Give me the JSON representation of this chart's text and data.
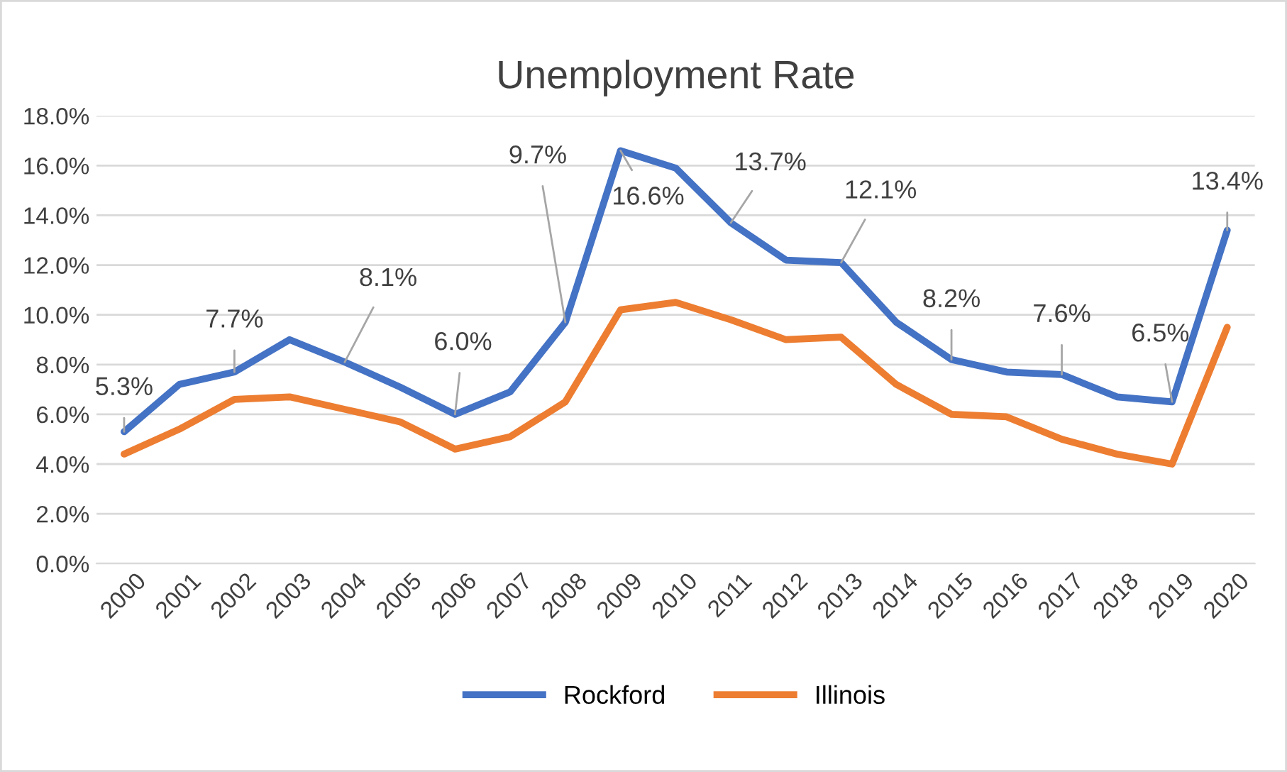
{
  "chart_data": {
    "type": "line",
    "title": "Unemployment Rate",
    "categories": [
      "2000",
      "2001",
      "2002",
      "2003",
      "2004",
      "2005",
      "2006",
      "2007",
      "2008",
      "2009",
      "2010",
      "2011",
      "2012",
      "2013",
      "2014",
      "2015",
      "2016",
      "2017",
      "2018",
      "2019",
      "2020"
    ],
    "series": [
      {
        "name": "Rockford",
        "color": "#4472c4",
        "values": [
          5.3,
          7.2,
          7.7,
          9.0,
          8.1,
          7.1,
          6.0,
          6.9,
          9.7,
          16.6,
          15.9,
          13.7,
          12.2,
          12.1,
          9.7,
          8.2,
          7.7,
          7.6,
          6.7,
          6.5,
          13.4
        ]
      },
      {
        "name": "Illinois",
        "color": "#ed7d31",
        "values": [
          4.4,
          5.4,
          6.6,
          6.7,
          6.2,
          5.7,
          4.6,
          5.1,
          6.5,
          10.2,
          10.5,
          9.8,
          9.0,
          9.1,
          7.2,
          6.0,
          5.9,
          5.0,
          4.4,
          4.0,
          9.5
        ]
      }
    ],
    "ylim": [
      0,
      18
    ],
    "yticks": [
      {
        "value": 0,
        "label": "0.0%"
      },
      {
        "value": 2,
        "label": "2.0%"
      },
      {
        "value": 4,
        "label": "4.0%"
      },
      {
        "value": 6,
        "label": "6.0%"
      },
      {
        "value": 8,
        "label": "8.0%"
      },
      {
        "value": 10,
        "label": "10.0%"
      },
      {
        "value": 12,
        "label": "12.0%"
      },
      {
        "value": 14,
        "label": "14.0%"
      },
      {
        "value": 16,
        "label": "16.0%"
      },
      {
        "value": 18,
        "label": "18.0%"
      }
    ],
    "annotations": [
      {
        "text": "5.3%",
        "x": "2000",
        "y": 5.3
      },
      {
        "text": "7.7%",
        "x": "2002",
        "y": 7.7
      },
      {
        "text": "8.1%",
        "x": "2004",
        "y": 8.1
      },
      {
        "text": "6.0%",
        "x": "2006",
        "y": 6.0
      },
      {
        "text": "9.7%",
        "x": "2008",
        "y": 9.7
      },
      {
        "text": "16.6%",
        "x": "2009",
        "y": 16.6
      },
      {
        "text": "13.7%",
        "x": "2011",
        "y": 13.7
      },
      {
        "text": "12.1%",
        "x": "2013",
        "y": 12.1
      },
      {
        "text": "8.2%",
        "x": "2015",
        "y": 8.2
      },
      {
        "text": "7.6%",
        "x": "2017",
        "y": 7.6
      },
      {
        "text": "6.5%",
        "x": "2019",
        "y": 6.5
      },
      {
        "text": "13.4%",
        "x": "2020",
        "y": 13.4
      }
    ],
    "grid": "y",
    "legend": "bottom",
    "marker": "none",
    "line_style": "solid"
  }
}
